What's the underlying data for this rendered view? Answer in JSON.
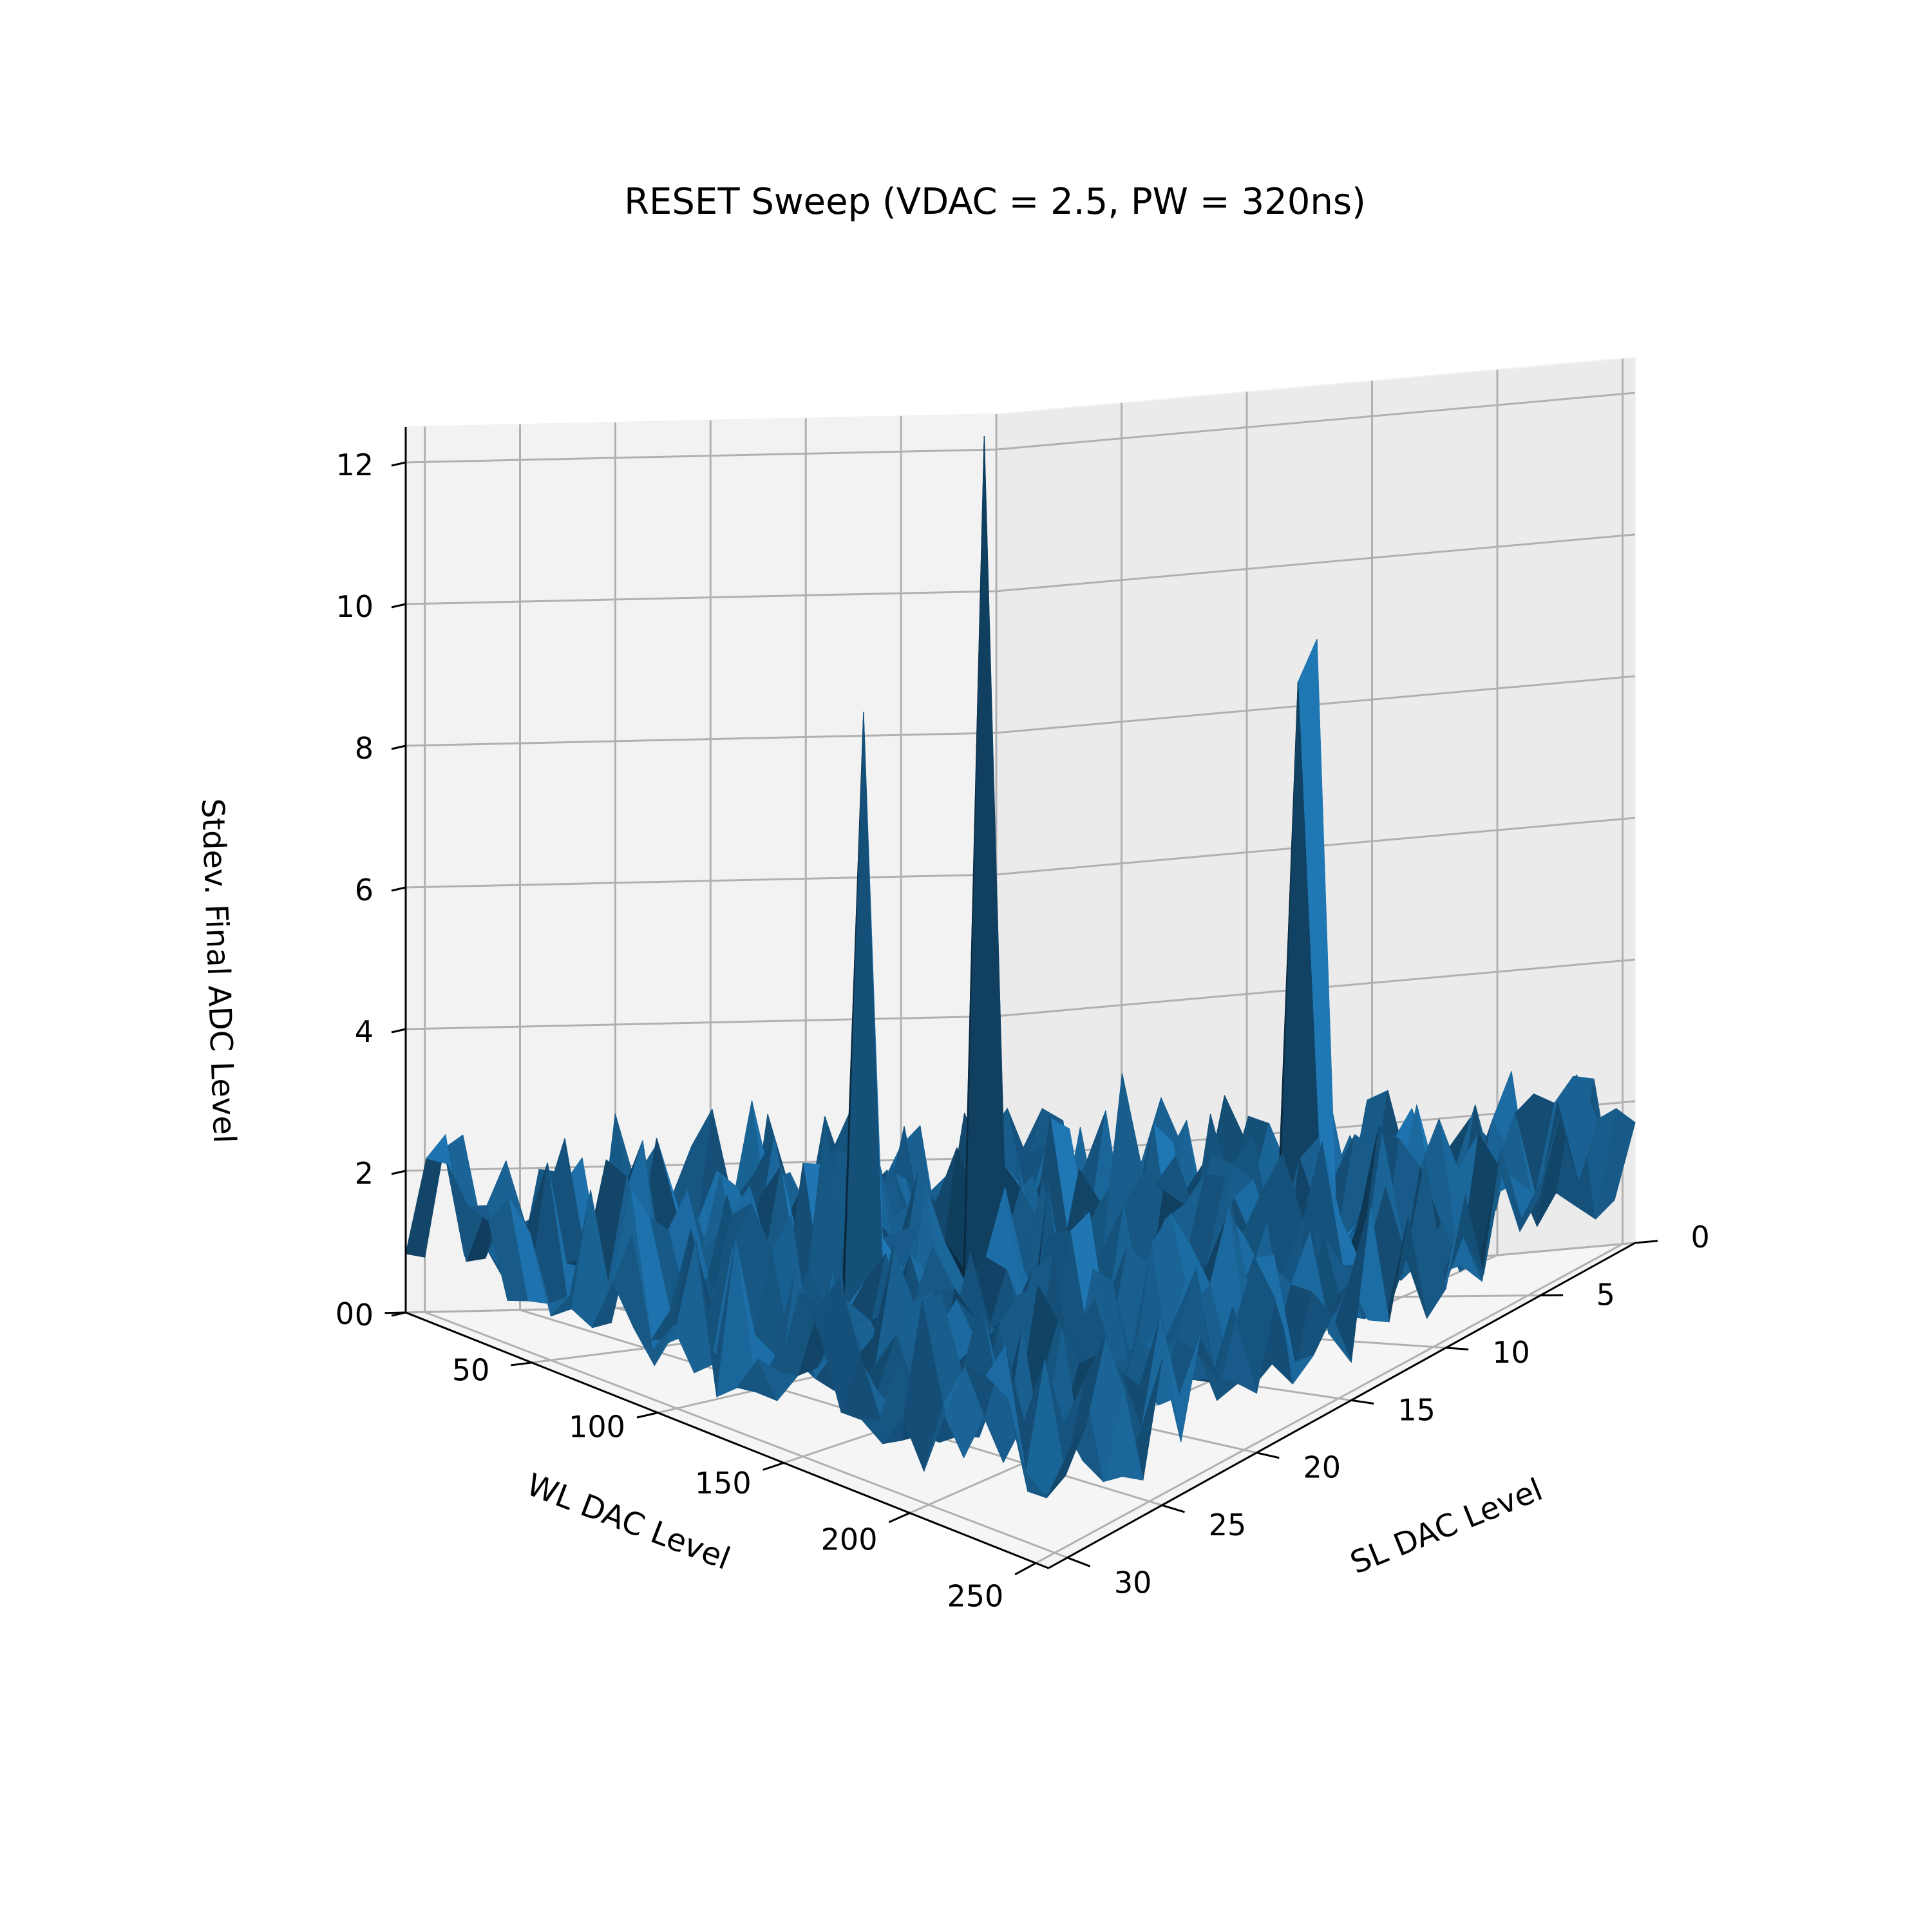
{
  "chart_data": {
    "type": "surface3d",
    "title": "RESET Sweep (VDAC = 2.5, PW = 320ns)",
    "xlabel": "WL DAC Level",
    "ylabel": "SL DAC Level",
    "zlabel": "Stdev. Final ADC Level",
    "xlim": [
      0,
      255
    ],
    "ylim": [
      0,
      31
    ],
    "zlim": [
      0,
      12.5
    ],
    "xticks": [
      "0",
      "50",
      "100",
      "150",
      "200",
      "250"
    ],
    "yticks": [
      "0",
      "5",
      "10",
      "15",
      "20",
      "25",
      "30"
    ],
    "zticks": [
      "0",
      "2",
      "4",
      "6",
      "8",
      "10",
      "12"
    ],
    "grid": true,
    "surface_color": "#1f77b4",
    "baseline_range": [
      0.4,
      2.6
    ],
    "peaks": [
      {
        "x": 128,
        "y": 18,
        "z": 13.2
      },
      {
        "x": 102,
        "y": 20,
        "z": 9.2
      },
      {
        "x": 180,
        "y": 8,
        "z": 9.0
      },
      {
        "x": 180,
        "y": 7,
        "z": 9.5
      },
      {
        "x": 100,
        "y": 22,
        "z": 3.6
      },
      {
        "x": 155,
        "y": 14,
        "z": 4.0
      }
    ]
  }
}
